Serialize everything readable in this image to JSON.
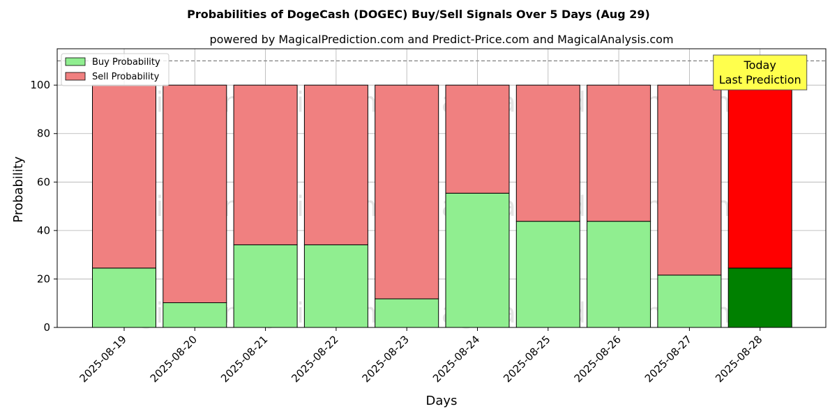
{
  "chart_data": {
    "type": "bar",
    "stacked": true,
    "title": "Probabilities of DogeCash (DOGEC) Buy/Sell Signals Over 5 Days (Aug 29)",
    "subtitle": "powered by MagicalPrediction.com and Predict-Price.com and MagicalAnalysis.com",
    "xlabel": "Days",
    "ylabel": "Probability",
    "ylim": [
      0,
      115
    ],
    "yticks": [
      0,
      20,
      40,
      60,
      80,
      100
    ],
    "grid": true,
    "legend_position": "top-left",
    "categories": [
      "2025-08-19",
      "2025-08-20",
      "2025-08-21",
      "2025-08-22",
      "2025-08-23",
      "2025-08-24",
      "2025-08-25",
      "2025-08-26",
      "2025-08-27",
      "2025-08-28"
    ],
    "series": [
      {
        "name": "Buy Probability",
        "values": [
          24.5,
          10.2,
          34.1,
          34.1,
          11.8,
          55.4,
          43.8,
          43.8,
          21.6,
          24.5
        ]
      },
      {
        "name": "Sell Probability",
        "values": [
          75.5,
          89.8,
          65.9,
          65.9,
          88.2,
          44.6,
          56.2,
          56.2,
          78.4,
          75.5
        ]
      }
    ],
    "reference_line": 110,
    "annotation": {
      "lines": [
        "Today",
        "Last Prediction"
      ],
      "category": "2025-08-28"
    },
    "watermarks": [
      "MagicalAnalysis.com",
      "MagicalPrediction.com"
    ]
  },
  "colors": {
    "buy": "#90ee90",
    "sell": "#f08080",
    "buy_highlight": "#008000",
    "sell_highlight": "#ff0000",
    "annotation_bg": "#ffff4d",
    "grid": "#b0b0b0"
  }
}
